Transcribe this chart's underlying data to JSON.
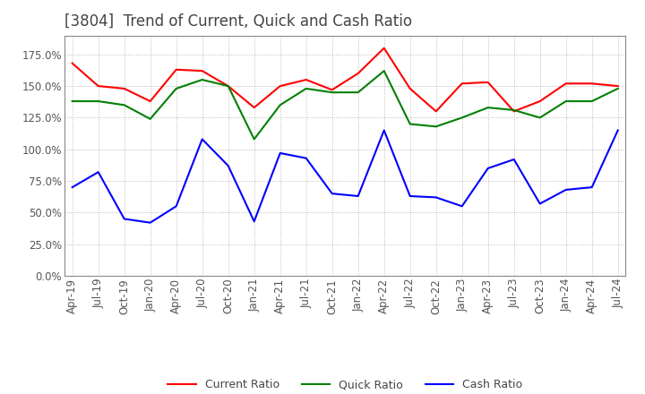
{
  "title": "[3804]  Trend of Current, Quick and Cash Ratio",
  "x_labels": [
    "Apr-19",
    "Jul-19",
    "Oct-19",
    "Jan-20",
    "Apr-20",
    "Jul-20",
    "Oct-20",
    "Jan-21",
    "Apr-21",
    "Jul-21",
    "Oct-21",
    "Jan-22",
    "Apr-22",
    "Jul-22",
    "Oct-22",
    "Jan-23",
    "Apr-23",
    "Jul-23",
    "Oct-23",
    "Jan-24",
    "Apr-24",
    "Jul-24"
  ],
  "current_ratio": [
    168,
    150,
    148,
    138,
    163,
    162,
    150,
    133,
    150,
    155,
    147,
    160,
    180,
    148,
    130,
    152,
    153,
    130,
    138,
    152,
    152,
    150
  ],
  "quick_ratio": [
    138,
    138,
    135,
    124,
    148,
    155,
    150,
    108,
    135,
    148,
    145,
    145,
    162,
    120,
    118,
    125,
    133,
    131,
    125,
    138,
    138,
    148
  ],
  "cash_ratio": [
    70,
    82,
    45,
    42,
    55,
    108,
    87,
    43,
    97,
    93,
    65,
    63,
    115,
    63,
    62,
    55,
    85,
    92,
    57,
    68,
    70,
    115
  ],
  "current_color": "#FF0000",
  "quick_color": "#008000",
  "cash_color": "#0000FF",
  "ylim": [
    0,
    190
  ],
  "yticks": [
    0,
    25,
    50,
    75,
    100,
    125,
    150,
    175
  ],
  "background_color": "#FFFFFF",
  "grid_color": "#AAAAAA",
  "title_fontsize": 12,
  "tick_fontsize": 8.5
}
